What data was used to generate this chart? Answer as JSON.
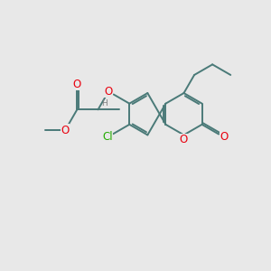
{
  "background_color": "#e8e8e8",
  "bond_color": "#4a7a78",
  "bond_width": 1.4,
  "atom_colors": {
    "O": "#e8000e",
    "Cl": "#22aa00",
    "H": "#808080",
    "C": "#4a7a78"
  },
  "font_size_atom": 8.5,
  "font_size_small": 6.5,
  "BL": 0.78
}
